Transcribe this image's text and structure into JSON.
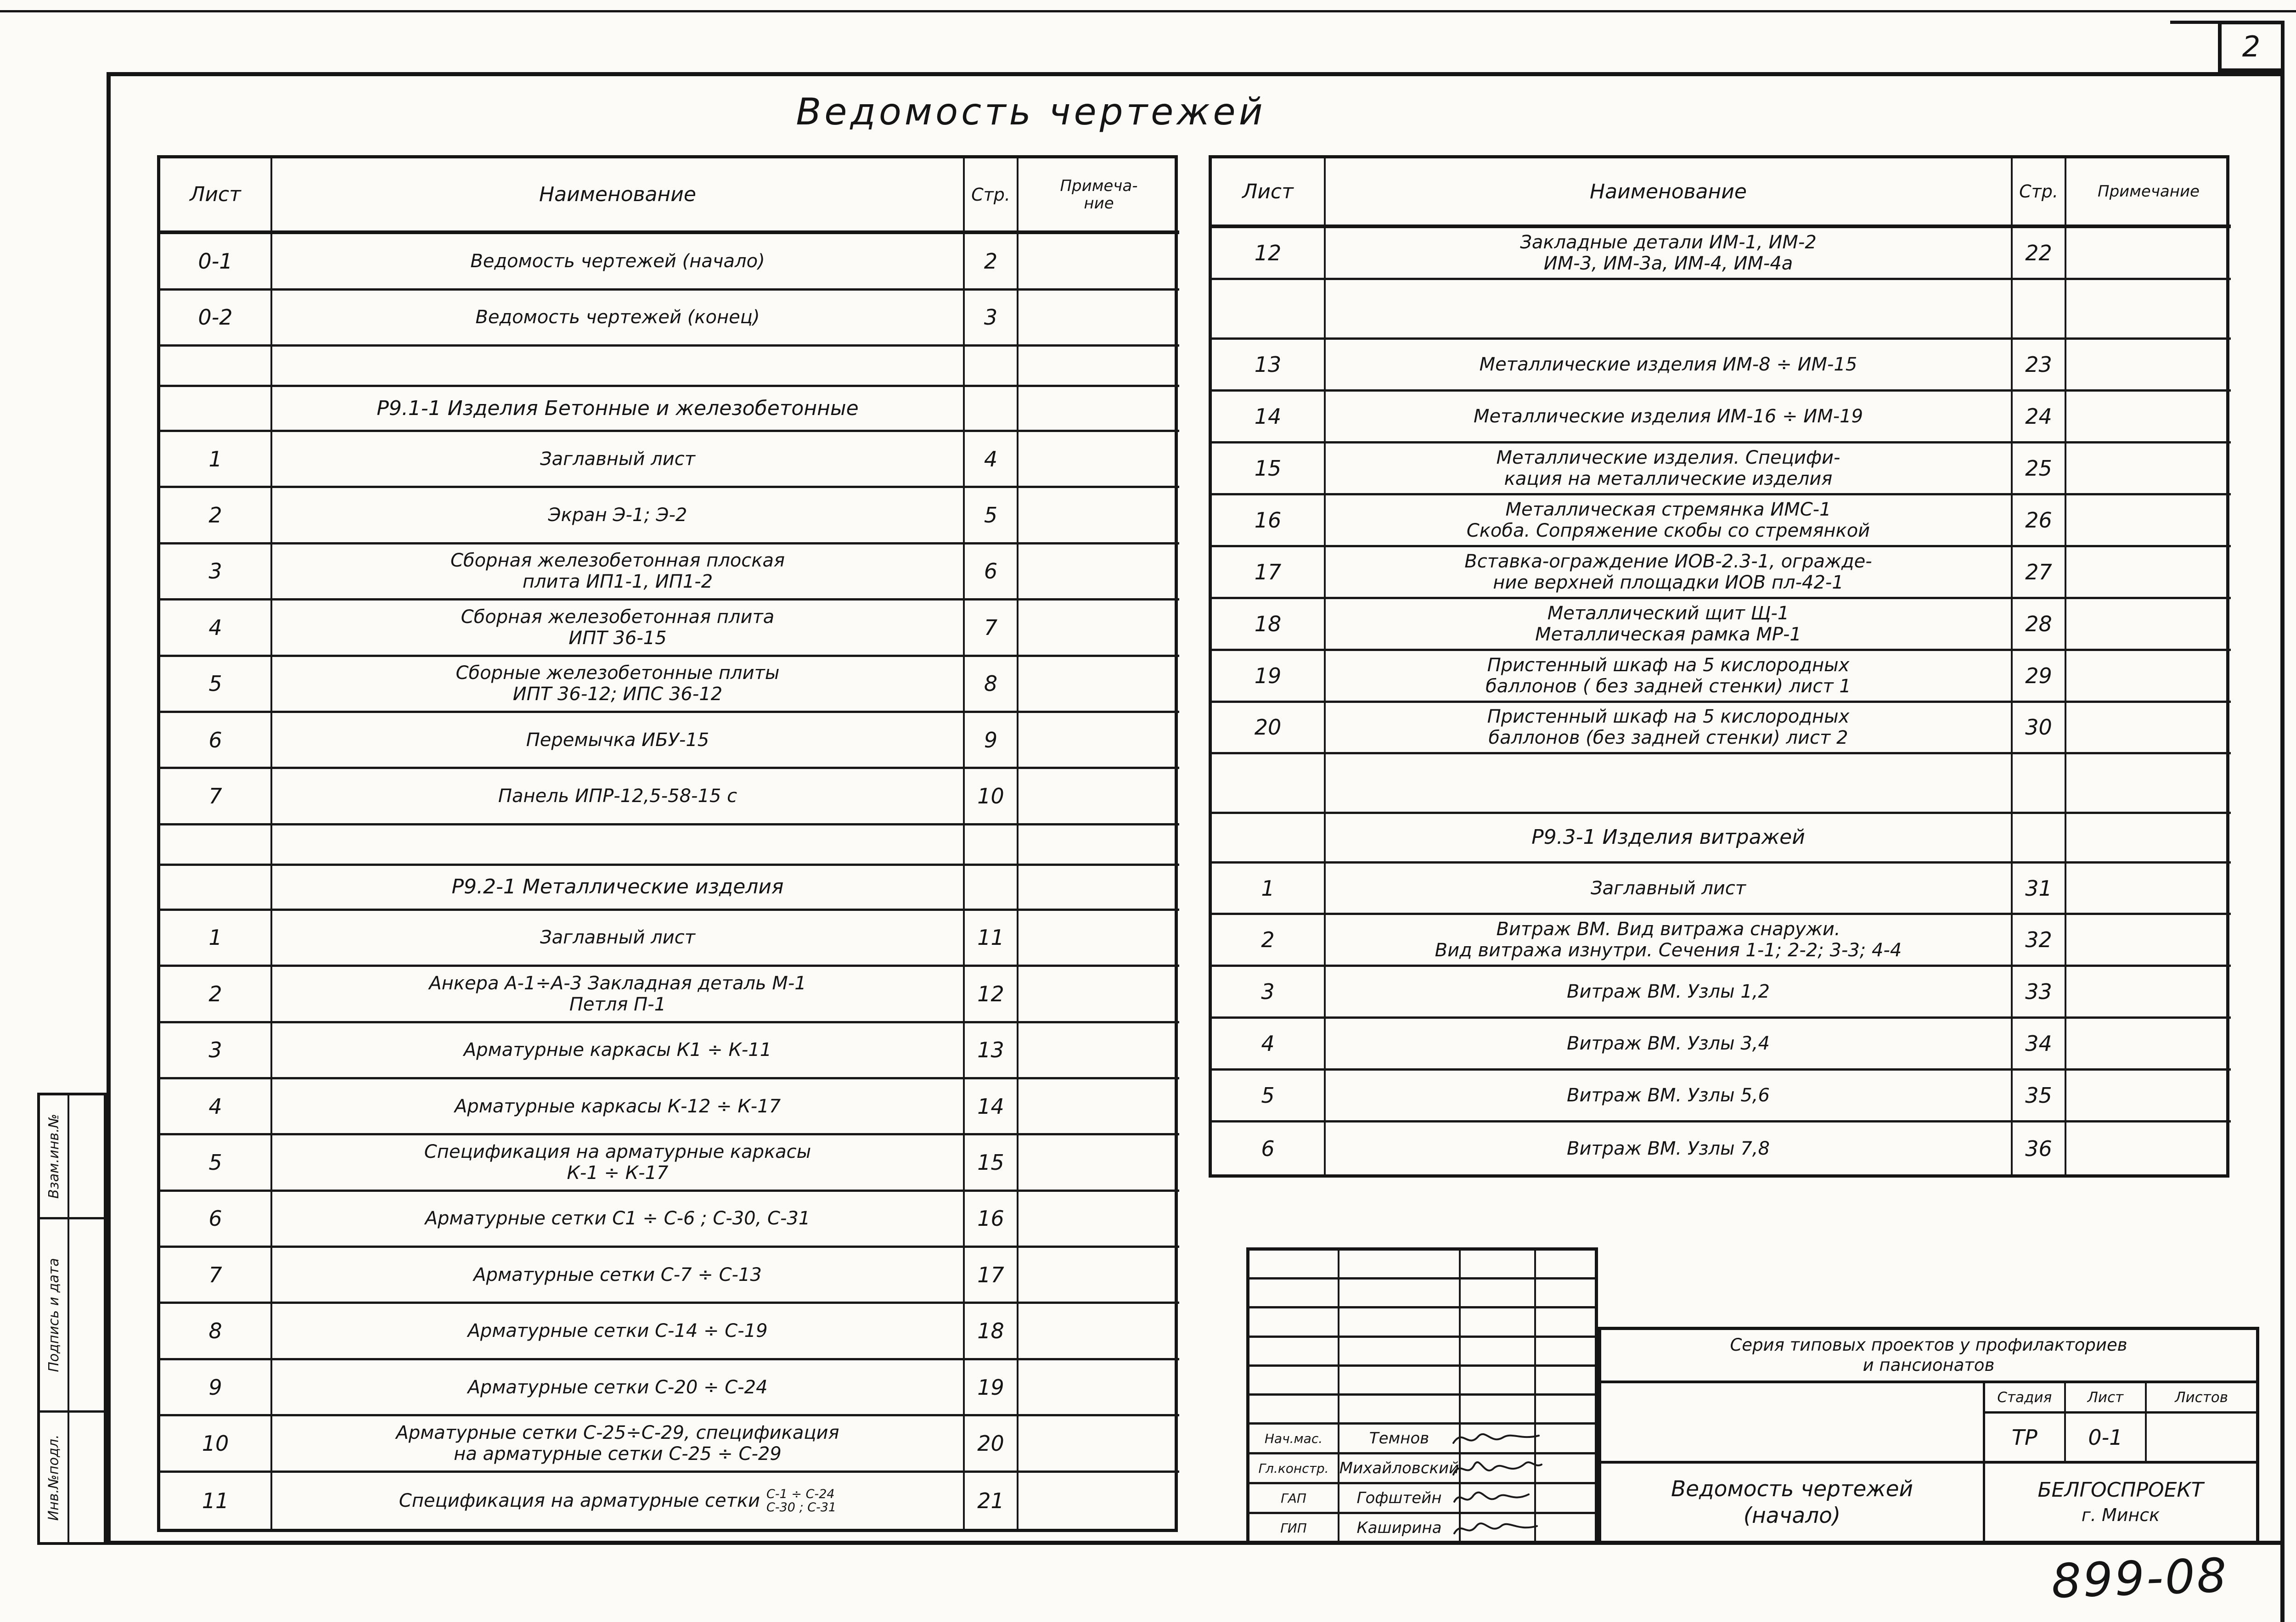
{
  "page": {
    "sheet_number": "2",
    "doc_code": "899-08",
    "paper_title": "Ведомость  чертежей"
  },
  "margin_labels": [
    "Взам.инв.№",
    "Подпись и дата",
    "Инв.№подл."
  ],
  "left_table": {
    "header": {
      "sheet": "Лист",
      "name": "Наименование",
      "page": "Стр.",
      "note_lines": [
        "Примеча-",
        "ние"
      ]
    },
    "rows": [
      {
        "type": "item",
        "sheet": "0-1",
        "name_lines": [
          "Ведомость  чертежей (начало)"
        ],
        "page": "2",
        "note": ""
      },
      {
        "type": "item",
        "sheet": "0-2",
        "name_lines": [
          "Ведомость  чертежей (конец)"
        ],
        "page": "3",
        "note": ""
      },
      {
        "type": "blank"
      },
      {
        "type": "section",
        "title": "Р9.1-1 Изделия Бетонные и железобетонные"
      },
      {
        "type": "item",
        "sheet": "1",
        "name_lines": [
          "Заглавный  лист"
        ],
        "page": "4",
        "note": ""
      },
      {
        "type": "item",
        "sheet": "2",
        "name_lines": [
          "Экран  Э-1; Э-2"
        ],
        "page": "5",
        "note": ""
      },
      {
        "type": "item",
        "sheet": "3",
        "name_lines": [
          "Сборная  железобетонная  плоская",
          "плита  ИП1-1,  ИП1-2"
        ],
        "page": "6",
        "note": ""
      },
      {
        "type": "item",
        "sheet": "4",
        "name_lines": [
          "Сборная  железобетонная  плита",
          "ИПТ 36-15"
        ],
        "page": "7",
        "note": ""
      },
      {
        "type": "item",
        "sheet": "5",
        "name_lines": [
          "Сборные  железобетонные  плиты",
          "ИПТ 36-12;  ИПС 36-12"
        ],
        "page": "8",
        "note": ""
      },
      {
        "type": "item",
        "sheet": "6",
        "name_lines": [
          "Перемычка  ИБУ-15"
        ],
        "page": "9",
        "note": ""
      },
      {
        "type": "item",
        "sheet": "7",
        "name_lines": [
          "Панель  ИПР-12,5-58-15 с"
        ],
        "page": "10",
        "note": ""
      },
      {
        "type": "blank"
      },
      {
        "type": "section",
        "title": "Р9.2-1 Металлические  изделия"
      },
      {
        "type": "item",
        "sheet": "1",
        "name_lines": [
          "Заглавный  лист"
        ],
        "page": "11",
        "note": ""
      },
      {
        "type": "item",
        "sheet": "2",
        "name_lines": [
          "Анкера А-1÷А-3 Закладная  деталь  М-1",
          "Петля  П-1"
        ],
        "page": "12",
        "note": ""
      },
      {
        "type": "item",
        "sheet": "3",
        "name_lines": [
          "Арматурные  каркасы  К1 ÷ К-11"
        ],
        "page": "13",
        "note": ""
      },
      {
        "type": "item",
        "sheet": "4",
        "name_lines": [
          "Арматурные  каркасы  К-12 ÷ К-17"
        ],
        "page": "14",
        "note": ""
      },
      {
        "type": "item",
        "sheet": "5",
        "name_lines": [
          "Спецификация  на  арматурные  каркасы",
          "К-1 ÷ К-17"
        ],
        "page": "15",
        "note": ""
      },
      {
        "type": "item",
        "sheet": "6",
        "name_lines": [
          "Арматурные  сетки  С1 ÷ С-6 ; С-30, С-31"
        ],
        "page": "16",
        "note": ""
      },
      {
        "type": "item",
        "sheet": "7",
        "name_lines": [
          "Арматурные  сетки  С-7 ÷ С-13"
        ],
        "page": "17",
        "note": ""
      },
      {
        "type": "item",
        "sheet": "8",
        "name_lines": [
          "Арматурные  сетки  С-14 ÷ С-19"
        ],
        "page": "18",
        "note": ""
      },
      {
        "type": "item",
        "sheet": "9",
        "name_lines": [
          "Арматурные  сетки  С-20 ÷ С-24"
        ],
        "page": "19",
        "note": ""
      },
      {
        "type": "item",
        "sheet": "10",
        "name_lines": [
          "Арматурные  сетки  С-25÷С-29, спецификация",
          "на  арматурные  сетки  С-25 ÷ С-29"
        ],
        "page": "20",
        "note": ""
      },
      {
        "type": "item",
        "sheet": "11",
        "name_lines": [
          "Спецификация  на  арматурные  сетки"
        ],
        "stack_lines": [
          "С-1 ÷ С-24",
          "С-30 ; С-31"
        ],
        "page": "21",
        "note": ""
      }
    ]
  },
  "right_table": {
    "header": {
      "sheet": "Лист",
      "name": "Наименование",
      "page": "Стр.",
      "note_lines": [
        "Примечание"
      ]
    },
    "rows": [
      {
        "type": "item",
        "sheet": "12",
        "name_lines": [
          "Закладные  детали  ИМ-1, ИМ-2",
          "ИМ-3,  ИМ-3а,  ИМ-4,  ИМ-4а"
        ],
        "page": "22",
        "note": ""
      },
      {
        "type": "blank"
      },
      {
        "type": "item",
        "sheet": "13",
        "name_lines": [
          "Металлические  изделия  ИМ-8 ÷ ИМ-15"
        ],
        "page": "23",
        "note": ""
      },
      {
        "type": "item",
        "sheet": "14",
        "name_lines": [
          "Металлические  изделия  ИМ-16 ÷ ИМ-19"
        ],
        "page": "24",
        "note": ""
      },
      {
        "type": "item",
        "sheet": "15",
        "name_lines": [
          "Металлические  изделия. Специфи-",
          "кация  на  металлические  изделия"
        ],
        "page": "25",
        "note": ""
      },
      {
        "type": "item",
        "sheet": "16",
        "name_lines": [
          "Металлическая  стремянка  ИМС-1",
          "Скоба. Сопряжение скобы со стремянкой"
        ],
        "page": "26",
        "note": ""
      },
      {
        "type": "item",
        "sheet": "17",
        "name_lines": [
          "Вставка-ограждение ИОВ-2.3-1, огражде-",
          "ние  верхней  площадки  ИОВ пл-42-1"
        ],
        "page": "27",
        "note": ""
      },
      {
        "type": "item",
        "sheet": "18",
        "name_lines": [
          "Металлический  щит  Щ-1",
          "Металлическая  рамка  МР-1"
        ],
        "page": "28",
        "note": ""
      },
      {
        "type": "item",
        "sheet": "19",
        "name_lines": [
          "Пристенный  шкаф  на 5 кислородных",
          "баллонов ( без задней  стенки) лист 1"
        ],
        "page": "29",
        "note": ""
      },
      {
        "type": "item",
        "sheet": "20",
        "name_lines": [
          "Пристенный  шкаф  на 5 кислородных",
          "баллонов (без  задней  стенки) лист 2"
        ],
        "page": "30",
        "note": ""
      },
      {
        "type": "blank"
      },
      {
        "type": "section",
        "title": "Р9.3-1  Изделия  витражей"
      },
      {
        "type": "item",
        "sheet": "1",
        "name_lines": [
          "Заглавный  лист"
        ],
        "page": "31",
        "note": ""
      },
      {
        "type": "item",
        "sheet": "2",
        "name_lines": [
          "Витраж ВМ. Вид витража снаружи.",
          "Вид витража изнутри. Сечения 1-1; 2-2; 3-3; 4-4"
        ],
        "page": "32",
        "note": ""
      },
      {
        "type": "item",
        "sheet": "3",
        "name_lines": [
          "Витраж  ВМ.  Узлы 1,2"
        ],
        "page": "33",
        "note": ""
      },
      {
        "type": "item",
        "sheet": "4",
        "name_lines": [
          "Витраж  ВМ.  Узлы 3,4"
        ],
        "page": "34",
        "note": ""
      },
      {
        "type": "item",
        "sheet": "5",
        "name_lines": [
          "Витраж  ВМ.  Узлы 5,6"
        ],
        "page": "35",
        "note": ""
      },
      {
        "type": "item",
        "sheet": "6",
        "name_lines": [
          "Витраж  ВМ.  Узлы 7,8"
        ],
        "page": "36",
        "note": ""
      }
    ]
  },
  "title_block": {
    "series_lines": [
      "Серия типовых проектов у профилакториев",
      "и  пансионатов"
    ],
    "stage_label": "Стадия",
    "sheet_label": "Лист",
    "sheets_label": "Листов",
    "stage_value": "ТР",
    "sheet_value": "0-1",
    "sheets_value": "",
    "doc_title_lines": [
      "Ведомость чертежей",
      "(начало)"
    ],
    "org_lines": [
      "БЕЛГОСПРОЕКТ",
      "г. Минск"
    ],
    "signatories": [
      {
        "role": "Нач.мас.",
        "name": "Темнов"
      },
      {
        "role": "Гл.констр.",
        "name": "Михайловский"
      },
      {
        "role": "ГАП",
        "name": "Гофштейн"
      },
      {
        "role": "ГИП",
        "name": "Каширина"
      }
    ]
  }
}
